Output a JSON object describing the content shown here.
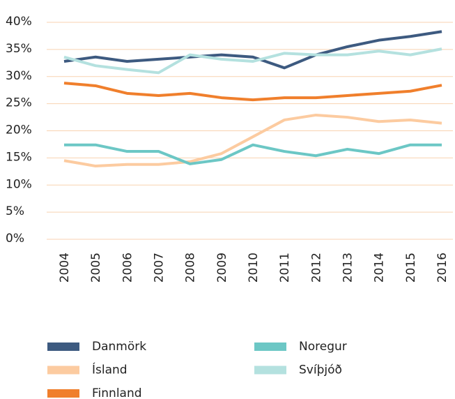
{
  "chart_data": {
    "type": "line",
    "categories": [
      "2004",
      "2005",
      "2006",
      "2007",
      "2008",
      "2009",
      "2010",
      "2011",
      "2012",
      "2013",
      "2014",
      "2015",
      "2016"
    ],
    "series": [
      {
        "name": "Danmörk",
        "color": "#3d5a80",
        "values": [
          32.8,
          33.6,
          32.8,
          33.2,
          33.6,
          34.0,
          33.6,
          31.6,
          34.0,
          35.5,
          36.7,
          37.4,
          38.3
        ]
      },
      {
        "name": "Ísland",
        "color": "#fccba0",
        "values": [
          14.5,
          13.5,
          13.8,
          13.8,
          14.3,
          15.8,
          18.9,
          22.0,
          22.9,
          22.5,
          21.7,
          22.0,
          21.4
        ]
      },
      {
        "name": "Finnland",
        "color": "#f07f2c",
        "values": [
          28.8,
          28.3,
          26.9,
          26.5,
          26.9,
          26.1,
          25.7,
          26.1,
          26.1,
          26.5,
          26.9,
          27.3,
          28.4
        ]
      },
      {
        "name": "Noregur",
        "color": "#6cc7c5",
        "values": [
          17.4,
          17.4,
          16.2,
          16.2,
          13.9,
          14.7,
          17.4,
          16.2,
          15.4,
          16.6,
          15.8,
          17.4,
          17.4
        ]
      },
      {
        "name": "Svíþjóð",
        "color": "#b4e1df",
        "values": [
          33.6,
          32.0,
          31.3,
          30.7,
          34.0,
          33.2,
          32.8,
          34.3,
          34.0,
          34.0,
          34.7,
          34.0,
          35.1
        ]
      }
    ],
    "ylim": [
      0,
      40
    ],
    "yticks": [
      {
        "value": 0,
        "label": "0%"
      },
      {
        "value": 5,
        "label": "5%"
      },
      {
        "value": 10,
        "label": "10%"
      },
      {
        "value": 15,
        "label": "15%"
      },
      {
        "value": 20,
        "label": "20%"
      },
      {
        "value": 25,
        "label": "25%"
      },
      {
        "value": 30,
        "label": "30%"
      },
      {
        "value": 35,
        "label": "35%"
      },
      {
        "value": 40,
        "label": "40%"
      }
    ],
    "grid": true
  }
}
